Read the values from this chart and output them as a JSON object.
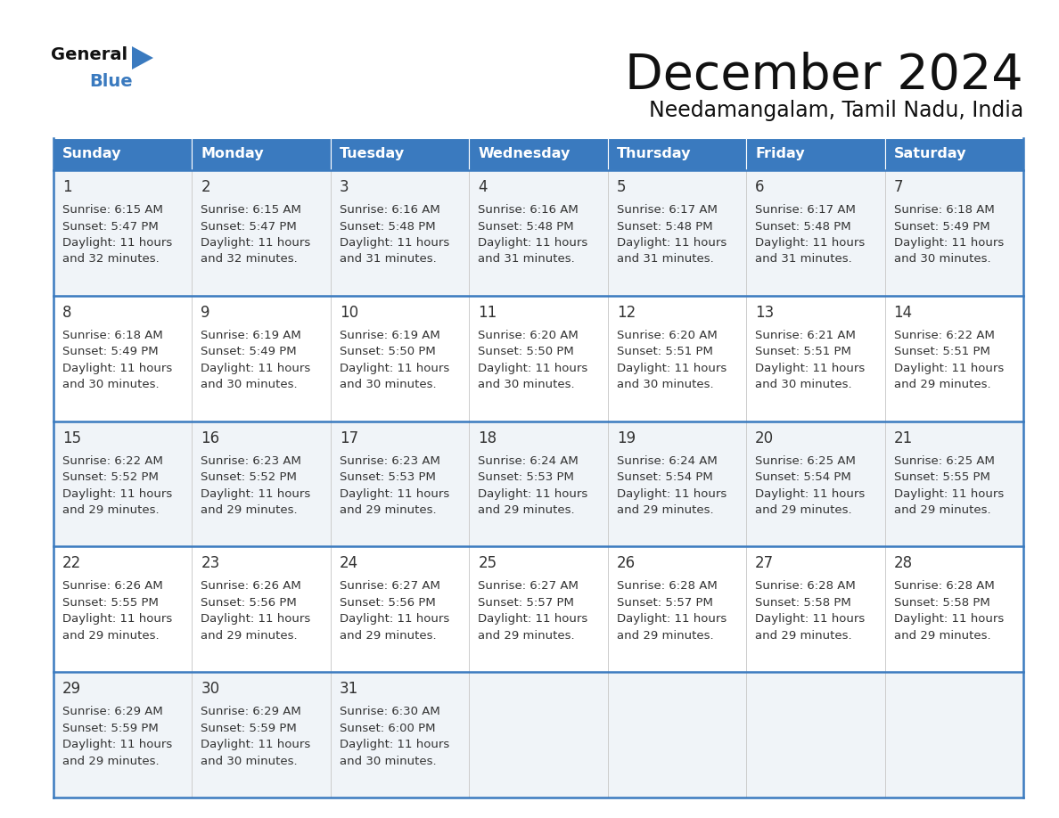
{
  "title": "December 2024",
  "subtitle": "Needamangalam, Tamil Nadu, India",
  "header_color": "#3a7abf",
  "header_text_color": "#ffffff",
  "border_color": "#3a7abf",
  "text_color": "#333333",
  "days_of_week": [
    "Sunday",
    "Monday",
    "Tuesday",
    "Wednesday",
    "Thursday",
    "Friday",
    "Saturday"
  ],
  "calendar_data": [
    [
      {
        "day": 1,
        "sunrise": "6:15 AM",
        "sunset": "5:47 PM",
        "daylight_l1": "Daylight: 11 hours",
        "daylight_l2": "and 32 minutes."
      },
      {
        "day": 2,
        "sunrise": "6:15 AM",
        "sunset": "5:47 PM",
        "daylight_l1": "Daylight: 11 hours",
        "daylight_l2": "and 32 minutes."
      },
      {
        "day": 3,
        "sunrise": "6:16 AM",
        "sunset": "5:48 PM",
        "daylight_l1": "Daylight: 11 hours",
        "daylight_l2": "and 31 minutes."
      },
      {
        "day": 4,
        "sunrise": "6:16 AM",
        "sunset": "5:48 PM",
        "daylight_l1": "Daylight: 11 hours",
        "daylight_l2": "and 31 minutes."
      },
      {
        "day": 5,
        "sunrise": "6:17 AM",
        "sunset": "5:48 PM",
        "daylight_l1": "Daylight: 11 hours",
        "daylight_l2": "and 31 minutes."
      },
      {
        "day": 6,
        "sunrise": "6:17 AM",
        "sunset": "5:48 PM",
        "daylight_l1": "Daylight: 11 hours",
        "daylight_l2": "and 31 minutes."
      },
      {
        "day": 7,
        "sunrise": "6:18 AM",
        "sunset": "5:49 PM",
        "daylight_l1": "Daylight: 11 hours",
        "daylight_l2": "and 30 minutes."
      }
    ],
    [
      {
        "day": 8,
        "sunrise": "6:18 AM",
        "sunset": "5:49 PM",
        "daylight_l1": "Daylight: 11 hours",
        "daylight_l2": "and 30 minutes."
      },
      {
        "day": 9,
        "sunrise": "6:19 AM",
        "sunset": "5:49 PM",
        "daylight_l1": "Daylight: 11 hours",
        "daylight_l2": "and 30 minutes."
      },
      {
        "day": 10,
        "sunrise": "6:19 AM",
        "sunset": "5:50 PM",
        "daylight_l1": "Daylight: 11 hours",
        "daylight_l2": "and 30 minutes."
      },
      {
        "day": 11,
        "sunrise": "6:20 AM",
        "sunset": "5:50 PM",
        "daylight_l1": "Daylight: 11 hours",
        "daylight_l2": "and 30 minutes."
      },
      {
        "day": 12,
        "sunrise": "6:20 AM",
        "sunset": "5:51 PM",
        "daylight_l1": "Daylight: 11 hours",
        "daylight_l2": "and 30 minutes."
      },
      {
        "day": 13,
        "sunrise": "6:21 AM",
        "sunset": "5:51 PM",
        "daylight_l1": "Daylight: 11 hours",
        "daylight_l2": "and 30 minutes."
      },
      {
        "day": 14,
        "sunrise": "6:22 AM",
        "sunset": "5:51 PM",
        "daylight_l1": "Daylight: 11 hours",
        "daylight_l2": "and 29 minutes."
      }
    ],
    [
      {
        "day": 15,
        "sunrise": "6:22 AM",
        "sunset": "5:52 PM",
        "daylight_l1": "Daylight: 11 hours",
        "daylight_l2": "and 29 minutes."
      },
      {
        "day": 16,
        "sunrise": "6:23 AM",
        "sunset": "5:52 PM",
        "daylight_l1": "Daylight: 11 hours",
        "daylight_l2": "and 29 minutes."
      },
      {
        "day": 17,
        "sunrise": "6:23 AM",
        "sunset": "5:53 PM",
        "daylight_l1": "Daylight: 11 hours",
        "daylight_l2": "and 29 minutes."
      },
      {
        "day": 18,
        "sunrise": "6:24 AM",
        "sunset": "5:53 PM",
        "daylight_l1": "Daylight: 11 hours",
        "daylight_l2": "and 29 minutes."
      },
      {
        "day": 19,
        "sunrise": "6:24 AM",
        "sunset": "5:54 PM",
        "daylight_l1": "Daylight: 11 hours",
        "daylight_l2": "and 29 minutes."
      },
      {
        "day": 20,
        "sunrise": "6:25 AM",
        "sunset": "5:54 PM",
        "daylight_l1": "Daylight: 11 hours",
        "daylight_l2": "and 29 minutes."
      },
      {
        "day": 21,
        "sunrise": "6:25 AM",
        "sunset": "5:55 PM",
        "daylight_l1": "Daylight: 11 hours",
        "daylight_l2": "and 29 minutes."
      }
    ],
    [
      {
        "day": 22,
        "sunrise": "6:26 AM",
        "sunset": "5:55 PM",
        "daylight_l1": "Daylight: 11 hours",
        "daylight_l2": "and 29 minutes."
      },
      {
        "day": 23,
        "sunrise": "6:26 AM",
        "sunset": "5:56 PM",
        "daylight_l1": "Daylight: 11 hours",
        "daylight_l2": "and 29 minutes."
      },
      {
        "day": 24,
        "sunrise": "6:27 AM",
        "sunset": "5:56 PM",
        "daylight_l1": "Daylight: 11 hours",
        "daylight_l2": "and 29 minutes."
      },
      {
        "day": 25,
        "sunrise": "6:27 AM",
        "sunset": "5:57 PM",
        "daylight_l1": "Daylight: 11 hours",
        "daylight_l2": "and 29 minutes."
      },
      {
        "day": 26,
        "sunrise": "6:28 AM",
        "sunset": "5:57 PM",
        "daylight_l1": "Daylight: 11 hours",
        "daylight_l2": "and 29 minutes."
      },
      {
        "day": 27,
        "sunrise": "6:28 AM",
        "sunset": "5:58 PM",
        "daylight_l1": "Daylight: 11 hours",
        "daylight_l2": "and 29 minutes."
      },
      {
        "day": 28,
        "sunrise": "6:28 AM",
        "sunset": "5:58 PM",
        "daylight_l1": "Daylight: 11 hours",
        "daylight_l2": "and 29 minutes."
      }
    ],
    [
      {
        "day": 29,
        "sunrise": "6:29 AM",
        "sunset": "5:59 PM",
        "daylight_l1": "Daylight: 11 hours",
        "daylight_l2": "and 29 minutes."
      },
      {
        "day": 30,
        "sunrise": "6:29 AM",
        "sunset": "5:59 PM",
        "daylight_l1": "Daylight: 11 hours",
        "daylight_l2": "and 30 minutes."
      },
      {
        "day": 31,
        "sunrise": "6:30 AM",
        "sunset": "6:00 PM",
        "daylight_l1": "Daylight: 11 hours",
        "daylight_l2": "and 30 minutes."
      },
      null,
      null,
      null,
      null
    ]
  ]
}
